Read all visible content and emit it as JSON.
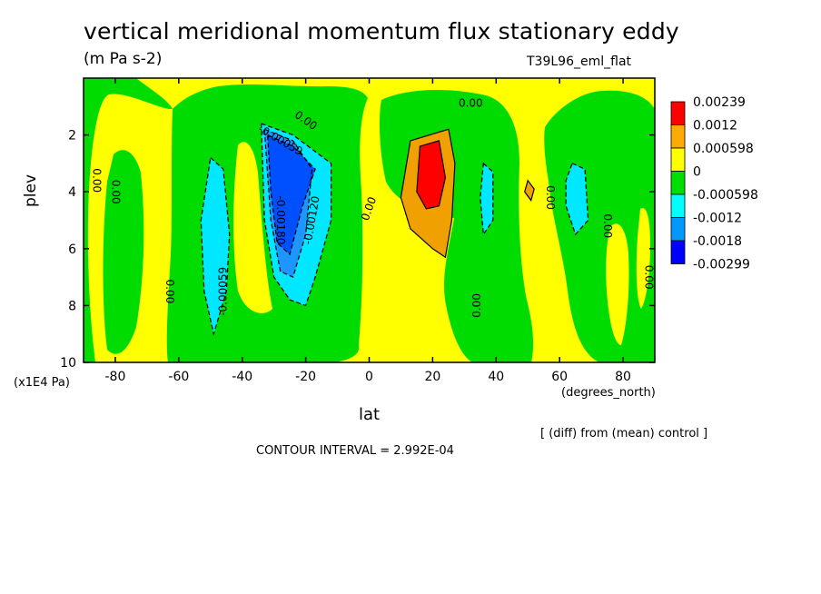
{
  "chart_data": {
    "type": "heatmap",
    "title": "vertical meridional momentum flux stationary eddy",
    "units": "(m Pa s-2)",
    "run_label": "T39L96_eml_flat",
    "xlabel": "lat",
    "x_unit": "(degrees_north)",
    "ylabel": "plev",
    "y_unit": "(x1E4 Pa)",
    "xlim": [
      -90,
      90
    ],
    "ylim": [
      10,
      0
    ],
    "x_ticks": [
      -80,
      -60,
      -40,
      -20,
      0,
      20,
      40,
      60,
      80
    ],
    "x_tick_labels": [
      "-80",
      "-60",
      "-40",
      "-20",
      "0",
      "20",
      "40",
      "60",
      "80"
    ],
    "y_ticks": [
      2,
      4,
      6,
      8,
      10
    ],
    "y_tick_labels": [
      "2",
      "4",
      "6",
      "8",
      "10"
    ],
    "legend": {
      "levels": [
        "0.00239",
        "0.0012",
        "0.000598",
        "0",
        "-0.000598",
        "-0.0012",
        "-0.0018",
        "-0.00299"
      ],
      "colors": [
        "#ff0000",
        "#ffaa00",
        "#ffff00",
        "#00dd00",
        "#00ffff",
        "#0099ff",
        "#0000ff"
      ]
    },
    "colors": {
      "red": "#ff0000",
      "orange": "#f0a000",
      "yellow": "#ffff00",
      "green": "#00dc00",
      "cyan": "#00e8ff",
      "mid_blue": "#1e96ff",
      "deep_blue": "#0050ff"
    },
    "regions": [
      {
        "level": "-0.000598",
        "color_key": "cyan",
        "points": [
          [
            -50,
            2.8
          ],
          [
            -46,
            3.2
          ],
          [
            -44,
            5.5
          ],
          [
            -45,
            7.5
          ],
          [
            -49,
            9
          ],
          [
            -52,
            7.5
          ],
          [
            -53,
            5
          ]
        ]
      },
      {
        "level": "-0.0012",
        "color_key": "cyan",
        "points": [
          [
            -34,
            1.6
          ],
          [
            -24,
            2.0
          ],
          [
            -12,
            3.0
          ],
          [
            -12,
            5.0
          ],
          [
            -17,
            7.0
          ],
          [
            -20,
            8.0
          ],
          [
            -25,
            7.8
          ],
          [
            -30,
            7.0
          ],
          [
            -33,
            5.0
          ]
        ]
      },
      {
        "level": "-0.0018",
        "color_key": "mid_blue",
        "points": [
          [
            -33,
            1.8
          ],
          [
            -24,
            2.2
          ],
          [
            -18,
            3.2
          ],
          [
            -20,
            5.5
          ],
          [
            -24,
            7.0
          ],
          [
            -28,
            6.8
          ],
          [
            -31,
            5.0
          ]
        ]
      },
      {
        "level": "-0.00299",
        "color_key": "deep_blue",
        "points": [
          [
            -32,
            2.0
          ],
          [
            -24,
            2.4
          ],
          [
            -17,
            3.2
          ],
          [
            -21,
            4.5
          ],
          [
            -25,
            6.2
          ],
          [
            -29,
            5.8
          ],
          [
            -31,
            4.0
          ]
        ]
      },
      {
        "level": "-0.000598",
        "color_key": "cyan",
        "points": [
          [
            36,
            3.0
          ],
          [
            39,
            3.3
          ],
          [
            39,
            5.0
          ],
          [
            36,
            5.5
          ],
          [
            35,
            4.2
          ]
        ]
      },
      {
        "level": "-0.000598",
        "color_key": "cyan",
        "points": [
          [
            64,
            3.0
          ],
          [
            68,
            3.2
          ],
          [
            69,
            5.0
          ],
          [
            65,
            5.5
          ],
          [
            62,
            4.5
          ],
          [
            62,
            3.6
          ]
        ]
      },
      {
        "level": "0.000598",
        "color_key": "orange",
        "points": [
          [
            13,
            2.2
          ],
          [
            25,
            1.8
          ],
          [
            27,
            3.0
          ],
          [
            26,
            5.0
          ],
          [
            24,
            6.3
          ],
          [
            20,
            6.0
          ],
          [
            13,
            5.3
          ],
          [
            10,
            4.2
          ]
        ]
      },
      {
        "level": "0.0012",
        "color_key": "red",
        "points": [
          [
            16,
            2.4
          ],
          [
            22,
            2.2
          ],
          [
            24,
            3.5
          ],
          [
            22,
            4.5
          ],
          [
            18,
            4.6
          ],
          [
            15,
            4.0
          ]
        ]
      },
      {
        "level": "0.000598",
        "color_key": "orange",
        "points": [
          [
            50,
            3.6
          ],
          [
            52,
            3.9
          ],
          [
            51,
            4.3
          ],
          [
            49,
            4.0
          ]
        ]
      }
    ],
    "contour_labels": [
      {
        "text": "0.00",
        "lat": -86,
        "plev": 3.6,
        "rotate": 90
      },
      {
        "text": "0.00",
        "lat": -80,
        "plev": 4.0,
        "rotate": 90
      },
      {
        "text": "0.00",
        "lat": -63,
        "plev": 7.5,
        "rotate": 90
      },
      {
        "text": "-0.00059",
        "lat": -46,
        "plev": 7.5,
        "rotate": -90
      },
      {
        "text": "0.00",
        "lat": -20,
        "plev": 1.5,
        "rotate": 35
      },
      {
        "text": "-0.00059",
        "lat": -28,
        "plev": 2.2,
        "rotate": 30
      },
      {
        "text": "-0.00180",
        "lat": -28,
        "plev": 5.0,
        "rotate": 90
      },
      {
        "text": "-0.00120",
        "lat": -18,
        "plev": 5.0,
        "rotate": -80
      },
      {
        "text": "0.00",
        "lat": 0,
        "plev": 4.6,
        "rotate": -70
      },
      {
        "text": "0.00",
        "lat": 32,
        "plev": 0.9,
        "rotate": 0
      },
      {
        "text": "0.00",
        "lat": 34,
        "plev": 8.0,
        "rotate": -90
      },
      {
        "text": "0.00",
        "lat": 57,
        "plev": 4.2,
        "rotate": 90
      },
      {
        "text": "0.00",
        "lat": 75,
        "plev": 5.2,
        "rotate": 90
      },
      {
        "text": "0.00",
        "lat": 88,
        "plev": 7.0,
        "rotate": 90
      }
    ]
  },
  "footer": {
    "diff_note": "[ (diff) from (mean) control ]",
    "contour_interval": "CONTOUR INTERVAL = 2.992E-04"
  }
}
